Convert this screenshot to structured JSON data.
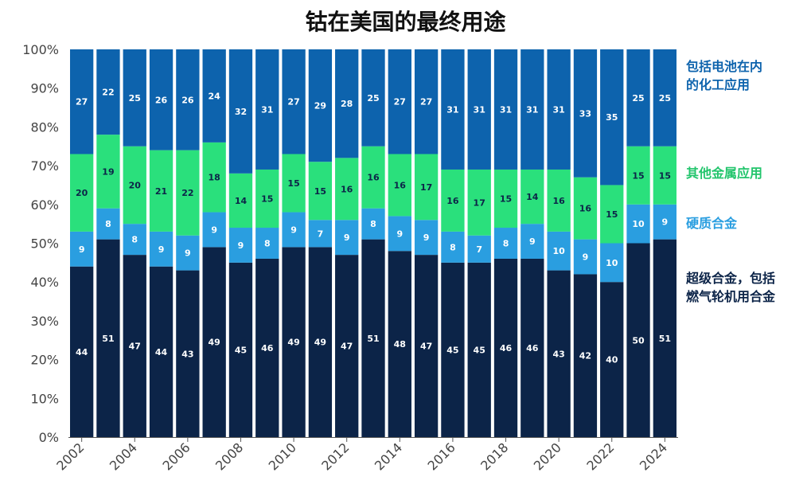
{
  "chart_data": {
    "type": "bar",
    "stacked": true,
    "title": "钴在美国的最终用途",
    "xlabel": "",
    "ylabel": "",
    "ylim": [
      0,
      100
    ],
    "y_tick_labels": [
      "0%",
      "10%",
      "20%",
      "30%",
      "40%",
      "50%",
      "60%",
      "70%",
      "80%",
      "90%",
      "100%"
    ],
    "x_tick_labels": [
      "2002",
      "2004",
      "2006",
      "2008",
      "2010",
      "2012",
      "2014",
      "2016",
      "2018",
      "2020",
      "2022",
      "2024"
    ],
    "categories": [
      "2002",
      "2003",
      "2004",
      "2005",
      "2006",
      "2007",
      "2008",
      "2009",
      "2010",
      "2011",
      "2012",
      "2013",
      "2014",
      "2015",
      "2016",
      "2017",
      "2018",
      "2019",
      "2020",
      "2021",
      "2022",
      "2023",
      "2024"
    ],
    "series": [
      {
        "name": "超级合金，包括燃气轮机用合金",
        "name_lines": [
          "超级合金，包括",
          "燃气轮机用合金"
        ],
        "color": "#0c2448",
        "label_color": "#ffffff",
        "values": [
          44,
          51,
          47,
          44,
          43,
          49,
          45,
          46,
          49,
          49,
          47,
          51,
          48,
          47,
          45,
          45,
          46,
          46,
          43,
          42,
          40,
          50,
          51
        ]
      },
      {
        "name": "硬质合金",
        "name_lines": [
          "硬质合金"
        ],
        "color": "#2a9ee0",
        "label_color": "#ffffff",
        "values": [
          9,
          8,
          8,
          9,
          9,
          9,
          9,
          8,
          9,
          7,
          9,
          8,
          9,
          9,
          8,
          7,
          8,
          9,
          10,
          9,
          10,
          10,
          9
        ]
      },
      {
        "name": "其他金属应用",
        "name_lines": [
          "其他金属应用"
        ],
        "color": "#2ae07c",
        "label_color": "#0c2448",
        "values": [
          20,
          19,
          20,
          21,
          22,
          18,
          14,
          15,
          15,
          15,
          16,
          16,
          16,
          17,
          16,
          17,
          15,
          14,
          16,
          16,
          15,
          15,
          15
        ]
      },
      {
        "name": "包括电池在内的化工应用",
        "name_lines": [
          "包括电池在内",
          "的化工应用"
        ],
        "color": "#0d63ad",
        "label_color": "#ffffff",
        "values": [
          27,
          22,
          25,
          26,
          26,
          24,
          32,
          31,
          27,
          29,
          28,
          25,
          27,
          27,
          31,
          31,
          31,
          31,
          31,
          33,
          35,
          25,
          25
        ]
      }
    ],
    "legend_position": "right",
    "grid": false
  }
}
